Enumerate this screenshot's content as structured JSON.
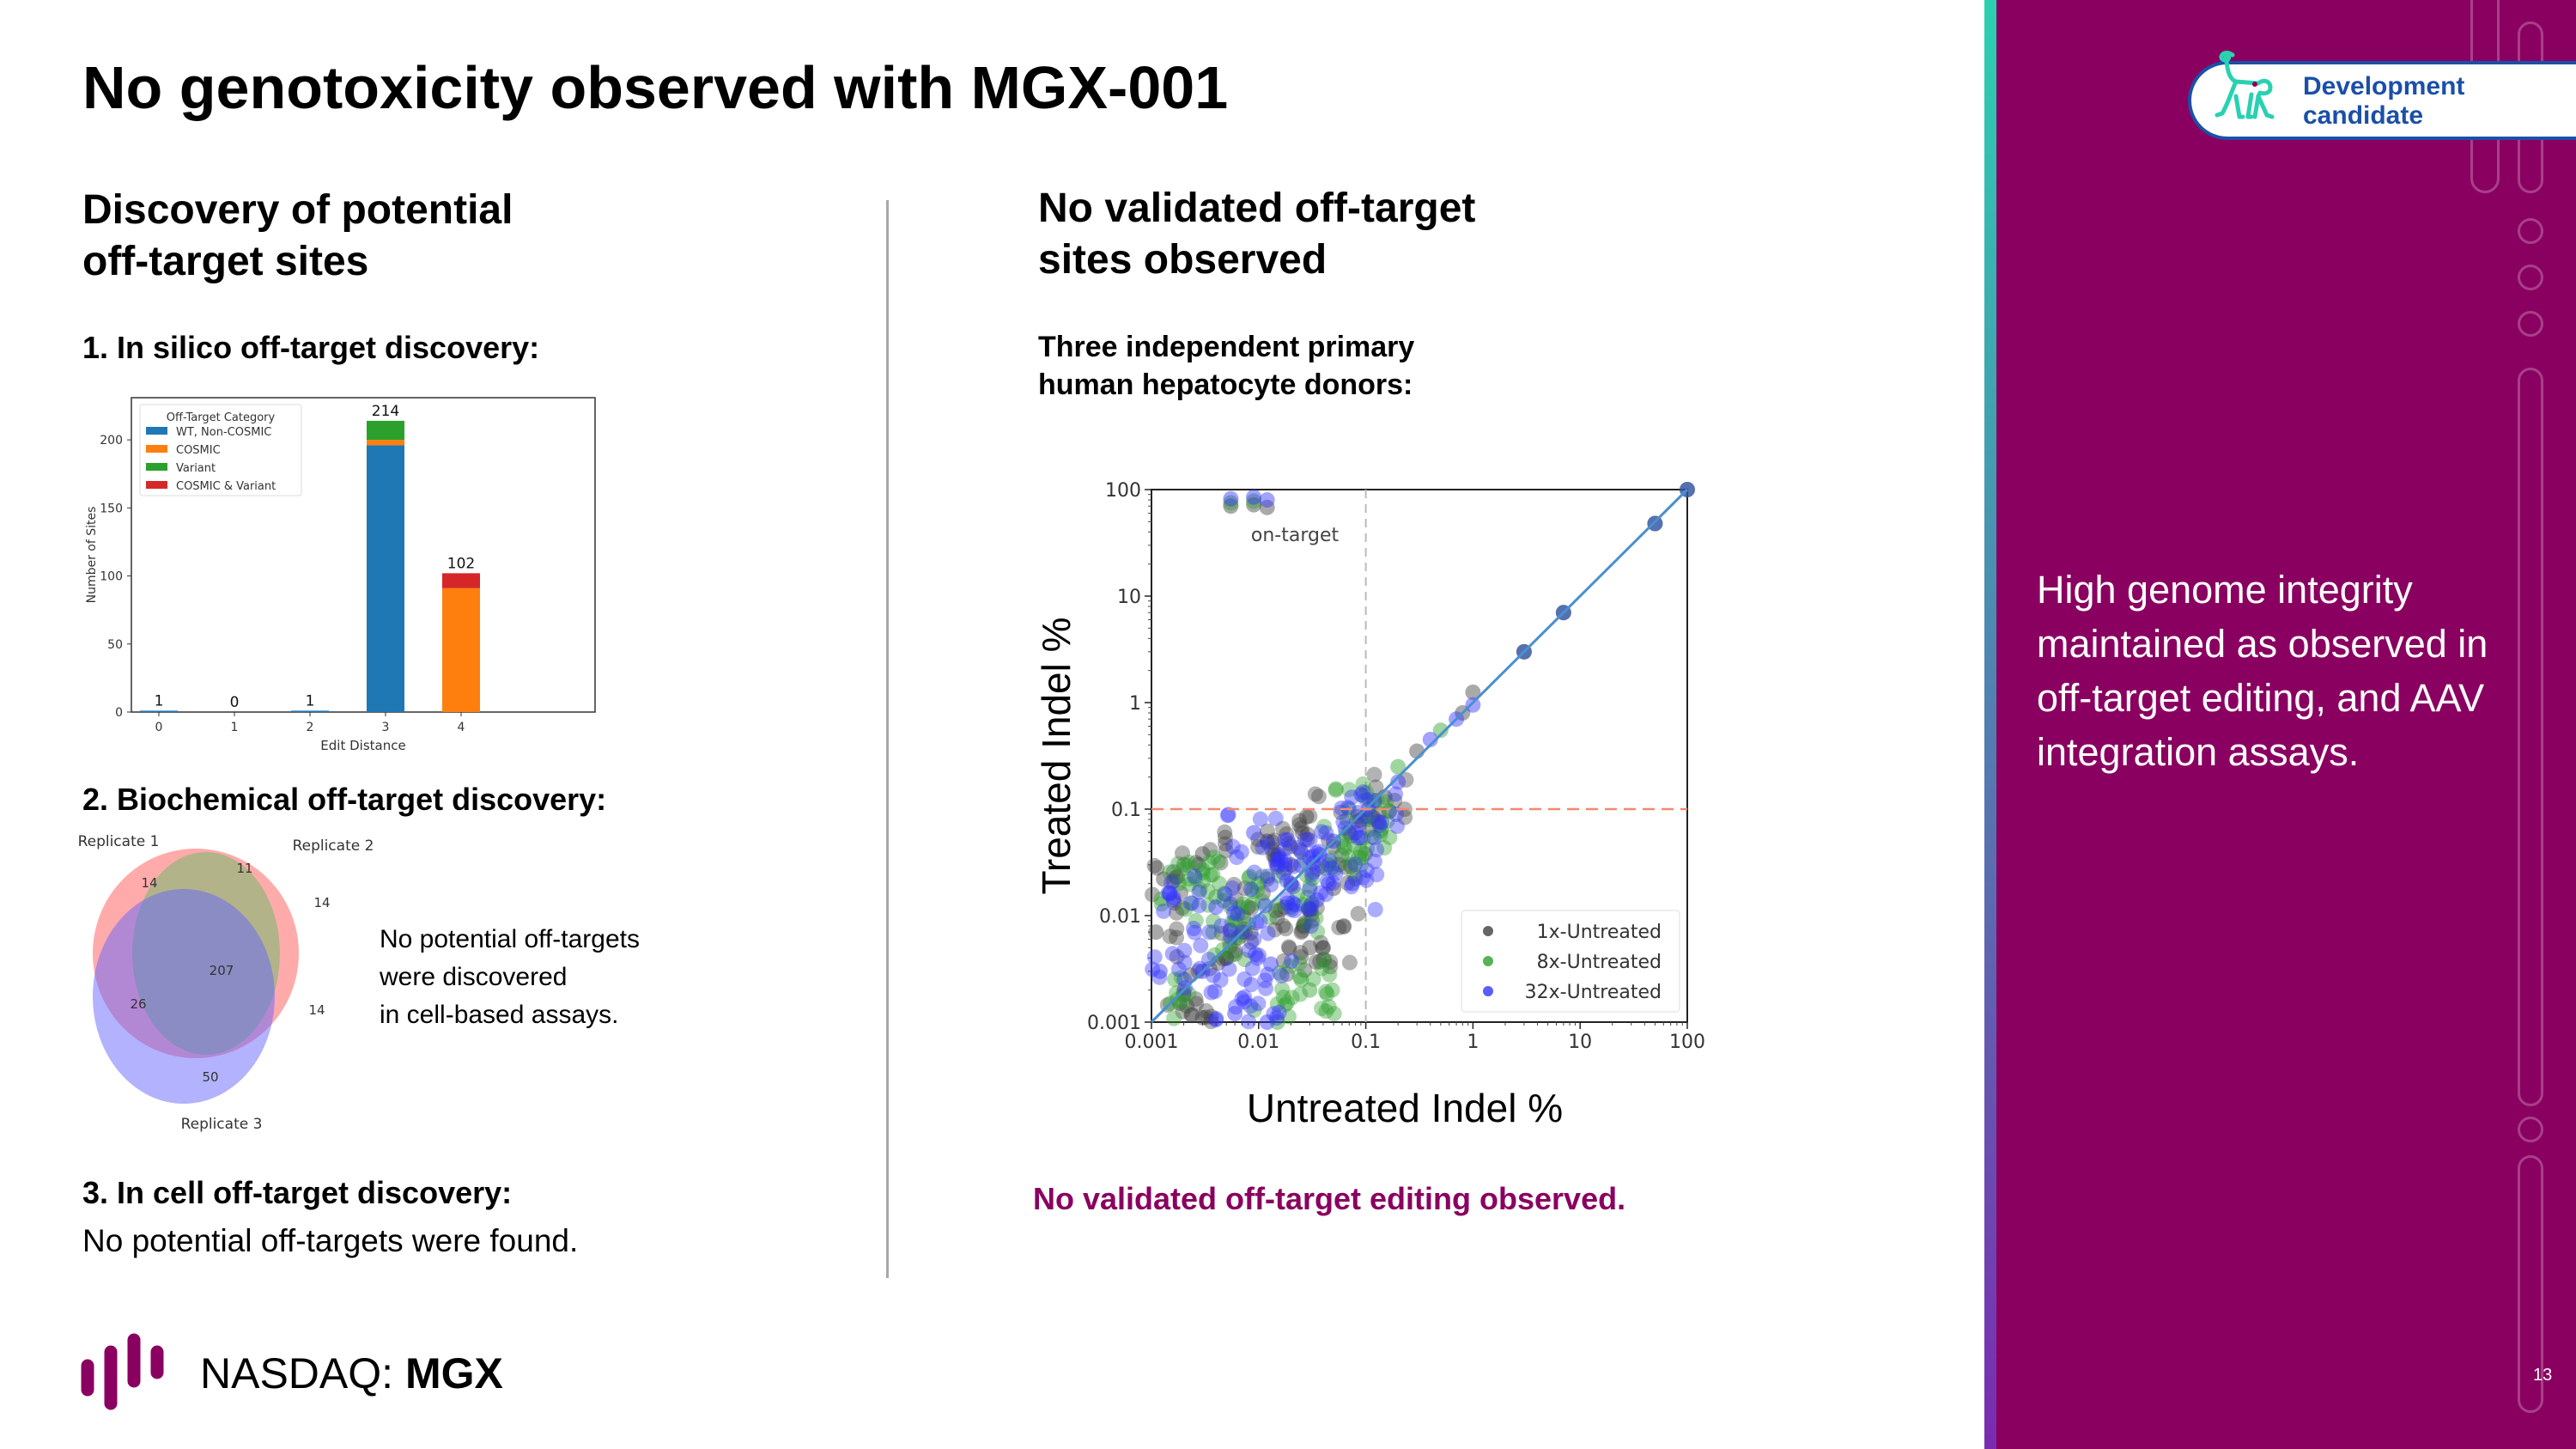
{
  "title": "No genotoxicity observed with MGX-001",
  "left": {
    "heading_line1": "Discovery of potential",
    "heading_line2": "off-target sites",
    "step1": "1. In silico off-target discovery:",
    "step2": "2. Biochemical off-target discovery:",
    "venn_note_line1": "No potential off-targets",
    "venn_note_line2": "were discovered",
    "venn_note_line3": "in cell-based assays.",
    "step3": "3. In cell off-target discovery:",
    "step3_note": "No potential off-targets were found."
  },
  "right": {
    "heading_line1": "No validated off-target",
    "heading_line2": "sites observed",
    "donors_line1": "Three independent primary",
    "donors_line2": "human hepatocyte donors:",
    "verdict": "No validated off-target editing observed."
  },
  "panel": {
    "badge_line1": "Development",
    "badge_line2": "candidate",
    "badge_icon": "monkey-icon",
    "statement": "High genome integrity maintained as observed in off-target editing, and AAV integration assays.",
    "page_number": "13",
    "colors": {
      "background": "#8a0060",
      "badge_text": "#1b4fa8",
      "icon": "#2ad1b0"
    }
  },
  "footer": {
    "exchange": "NASDAQ:",
    "ticker": "MGX",
    "logo_color": "#8a0060"
  },
  "chart_data": [
    {
      "type": "bar",
      "stacked": true,
      "xlabel": "Edit Distance",
      "ylabel": "Number of Sites",
      "categories": [
        "0",
        "1",
        "2",
        "3",
        "4"
      ],
      "ylim": [
        0,
        231
      ],
      "yticks": [
        0,
        50,
        100,
        150,
        200
      ],
      "legend_title": "Off-Target Category",
      "legend_position": "top-left",
      "series": [
        {
          "name": "WT, Non-COSMIC",
          "color": "#1f77b4",
          "values": [
            1,
            0,
            1,
            196,
            0
          ]
        },
        {
          "name": "COSMIC",
          "color": "#ff7f0e",
          "values": [
            0,
            0,
            0,
            4,
            91
          ]
        },
        {
          "name": "Variant",
          "color": "#2ca02c",
          "values": [
            0,
            0,
            0,
            14,
            0
          ]
        },
        {
          "name": "COSMIC & Variant",
          "color": "#d62728",
          "values": [
            0,
            0,
            0,
            0,
            11
          ]
        }
      ],
      "totals": [
        "1",
        "0",
        "1",
        "214",
        "102"
      ]
    },
    {
      "type": "venn",
      "sets": [
        "Replicate 1",
        "Replicate 2",
        "Replicate 3"
      ],
      "regions": {
        "R1_only": "14",
        "R1_R2": "11",
        "R2_only": "14",
        "all": "207",
        "R1_R3": "26",
        "R2_R3": "14",
        "R3_only": "50"
      },
      "colors": {
        "Replicate 1": "#ff6666",
        "Replicate 2": "#66bb66",
        "Replicate 3": "#6666ff"
      }
    },
    {
      "type": "scatter",
      "xlabel": "Untreated Indel %",
      "ylabel": "Treated Indel %",
      "xscale": "log",
      "yscale": "log",
      "xlim": [
        0.001,
        100
      ],
      "ylim": [
        0.001,
        100
      ],
      "xticks": [
        "0.001",
        "0.01",
        "0.1",
        "1",
        "10",
        "100"
      ],
      "yticks": [
        "0.001",
        "0.01",
        "0.1",
        "1",
        "10",
        "100"
      ],
      "reference_lines": {
        "diagonal": "y = x",
        "vertical_dashed": 0.1,
        "horizontal_dashed": 0.1
      },
      "annotation": "on-target",
      "legend_position": "bottom-right",
      "series": [
        {
          "name": "1x-Untreated",
          "color": "#404040",
          "points": [
            [
              0.0055,
              70
            ],
            [
              0.009,
              72
            ],
            [
              0.012,
              68
            ],
            [
              0.0013,
              0.022
            ],
            [
              0.003,
              0.038
            ],
            [
              0.028,
              0.085
            ],
            [
              0.012,
              0.05
            ],
            [
              0.04,
              0.005
            ],
            [
              0.03,
              0.005
            ],
            [
              0.025,
              0.007
            ],
            [
              0.0011,
              0.007
            ],
            [
              0.002,
              0.0018
            ],
            [
              0.003,
              0.0011
            ],
            [
              0.05,
              0.018
            ],
            [
              0.02,
              0.03
            ],
            [
              0.008,
              0.012
            ],
            [
              0.005,
              0.004
            ],
            [
              0.07,
              0.06
            ],
            [
              0.15,
              0.13
            ],
            [
              0.3,
              0.35
            ],
            [
              0.8,
              0.8
            ],
            [
              1,
              1.25
            ],
            [
              3,
              3
            ],
            [
              7,
              7
            ],
            [
              50,
              48
            ],
            [
              100,
              100
            ]
          ]
        },
        {
          "name": "8x-Untreated",
          "color": "#2ca02c",
          "points": [
            [
              0.0055,
              75
            ],
            [
              0.009,
              78
            ],
            [
              0.0018,
              0.02
            ],
            [
              0.003,
              0.027
            ],
            [
              0.03,
              0.002
            ],
            [
              0.025,
              0.0025
            ],
            [
              0.015,
              0.001
            ],
            [
              0.004,
              0.015
            ],
            [
              0.07,
              0.1
            ],
            [
              0.11,
              0.08
            ],
            [
              0.09,
              0.04
            ],
            [
              0.01,
              0.02
            ],
            [
              0.006,
              0.006
            ],
            [
              0.02,
              0.012
            ],
            [
              0.0015,
              0.0015
            ],
            [
              0.045,
              0.03
            ],
            [
              0.2,
              0.25
            ],
            [
              0.5,
              0.55
            ],
            [
              3,
              3
            ],
            [
              7,
              7
            ],
            [
              50,
              48
            ],
            [
              100,
              100
            ]
          ]
        },
        {
          "name": "32x-Untreated",
          "color": "#3333ff",
          "points": [
            [
              0.0055,
              82
            ],
            [
              0.009,
              85
            ],
            [
              0.012,
              80
            ],
            [
              0.0016,
              0.014
            ],
            [
              0.009,
              0.06
            ],
            [
              0.007,
              0.007
            ],
            [
              0.003,
              0.003
            ],
            [
              0.02,
              0.02
            ],
            [
              0.05,
              0.05
            ],
            [
              0.08,
              0.06
            ],
            [
              0.075,
              0.02
            ],
            [
              0.035,
              0.014
            ],
            [
              0.013,
              0.0035
            ],
            [
              0.012,
              0.001
            ],
            [
              0.006,
              0.0012
            ],
            [
              0.0012,
              0.003
            ],
            [
              0.004,
              0.012
            ],
            [
              0.015,
              0.03
            ],
            [
              0.03,
              0.035
            ],
            [
              0.12,
              0.12
            ],
            [
              0.2,
              0.18
            ],
            [
              0.4,
              0.45
            ],
            [
              0.7,
              0.7
            ],
            [
              1,
              0.95
            ],
            [
              3,
              3
            ],
            [
              7,
              7
            ],
            [
              50,
              48
            ],
            [
              100,
              100
            ]
          ]
        }
      ]
    }
  ]
}
